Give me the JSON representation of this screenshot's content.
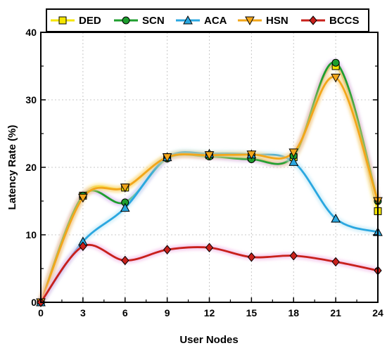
{
  "chart_data": {
    "type": "line",
    "xlabel": "User Nodes",
    "ylabel": "Latency Rate (%)",
    "x": [
      0,
      3,
      6,
      9,
      12,
      15,
      18,
      21,
      24
    ],
    "xlim": [
      0,
      24
    ],
    "ylim": [
      0,
      40
    ],
    "xticks": [
      "0",
      "3",
      "6",
      "9",
      "12",
      "15",
      "18",
      "21",
      "24"
    ],
    "yticks": [
      "0",
      "10",
      "20",
      "30",
      "40"
    ],
    "grid": true,
    "legend_position": "top",
    "series": [
      {
        "name": "DED",
        "color": "#f5e600",
        "marker": "square",
        "values": [
          0,
          15.8,
          17.0,
          21.5,
          21.8,
          21.5,
          21.5,
          35.0,
          13.5
        ]
      },
      {
        "name": "SCN",
        "color": "#1e9e2e",
        "marker": "circle",
        "values": [
          0,
          15.8,
          14.8,
          21.3,
          21.6,
          21.2,
          21.7,
          35.5,
          15.0
        ]
      },
      {
        "name": "ACA",
        "color": "#2aa7e0",
        "marker": "triangle-up",
        "values": [
          0,
          9.0,
          14.0,
          21.5,
          22.0,
          21.9,
          20.8,
          12.4,
          10.4
        ]
      },
      {
        "name": "HSN",
        "color": "#f2a61a",
        "marker": "triangle-down",
        "values": [
          0,
          15.5,
          17.0,
          21.5,
          21.8,
          21.9,
          22.2,
          33.3,
          15.0
        ]
      },
      {
        "name": "BCCS",
        "color": "#c8201b",
        "marker": "diamond",
        "values": [
          0,
          8.3,
          6.2,
          7.8,
          8.1,
          6.7,
          6.9,
          6.0,
          4.7
        ]
      }
    ]
  }
}
